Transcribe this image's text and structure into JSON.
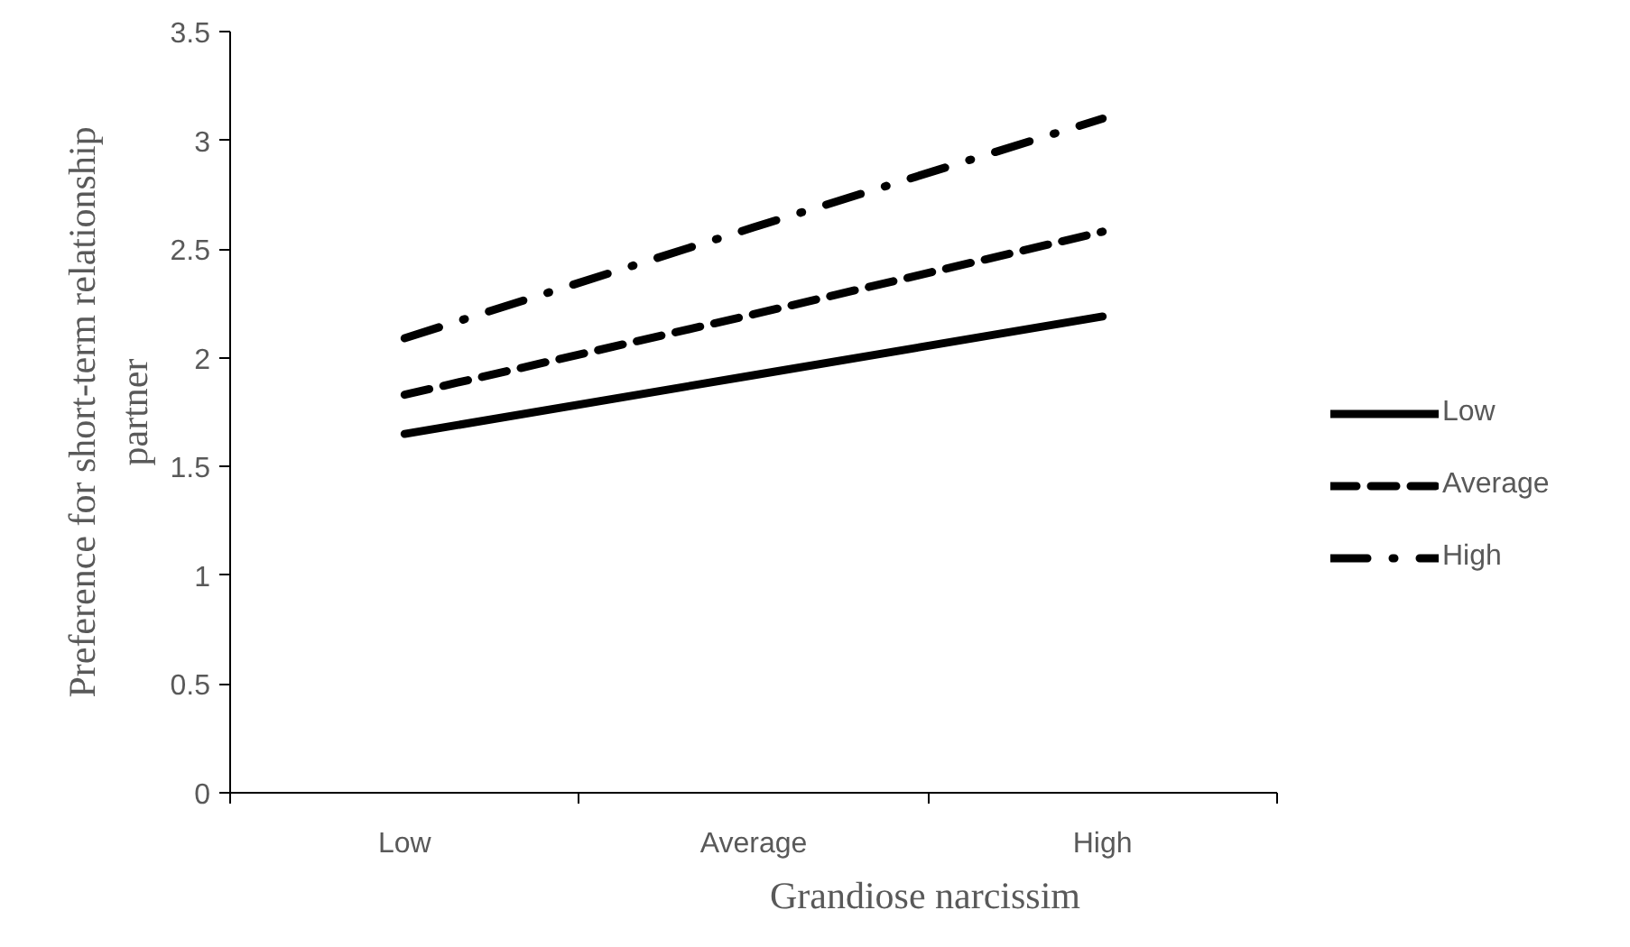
{
  "chart_data": {
    "type": "line",
    "xlabel": "Grandiose narcissim",
    "ylabel": "Preference for short-term relationship\npartner",
    "categories": [
      "Low",
      "Average",
      "High"
    ],
    "series": [
      {
        "name": "Low",
        "color": "#000000",
        "line_style": "solid",
        "values": [
          1.65,
          1.92,
          2.19
        ]
      },
      {
        "name": "Average",
        "color": "#000000",
        "line_style": "dashed",
        "values": [
          1.83,
          2.2,
          2.58
        ]
      },
      {
        "name": "High",
        "color": "#000000",
        "line_style": "dashdot",
        "values": [
          2.09,
          2.6,
          3.1
        ]
      }
    ],
    "ylim": [
      0,
      3.5
    ],
    "yticks": [
      0,
      0.5,
      1,
      1.5,
      2,
      2.5,
      3,
      3.5
    ],
    "grid": false,
    "legend": "right",
    "marker": "none"
  }
}
